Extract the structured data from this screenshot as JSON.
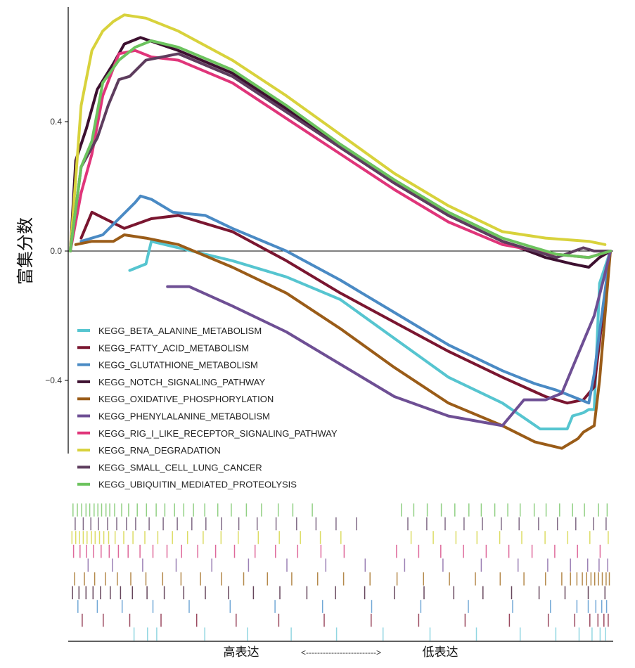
{
  "chart_data": {
    "type": "line",
    "title": "",
    "ylabel": "富集分数",
    "xlabel": {
      "left": "高表达",
      "arrow": "<------------------------->",
      "right": "低表达"
    },
    "ylim": [
      -0.64,
      0.74
    ],
    "yticks": [
      {
        "value": 0.4,
        "label": "0.4"
      },
      {
        "value": 0.0,
        "label": "0.0"
      },
      {
        "value": -0.4,
        "label": "−0.4"
      }
    ],
    "x_range": [
      0,
      100
    ],
    "zero_line": true,
    "grid": false,
    "legend_position": "bottom-left, inside plot",
    "series": [
      {
        "name": "KEGG_BETA_ALANINE_METABOLISM",
        "color": "#56c5d0",
        "points": [
          [
            11,
            -0.06
          ],
          [
            14,
            -0.04
          ],
          [
            15,
            0.03
          ],
          [
            20,
            0.01
          ],
          [
            30,
            -0.03
          ],
          [
            40,
            -0.08
          ],
          [
            50,
            -0.15
          ],
          [
            60,
            -0.27
          ],
          [
            70,
            -0.39
          ],
          [
            80,
            -0.47
          ],
          [
            87,
            -0.55
          ],
          [
            92,
            -0.55
          ],
          [
            93,
            -0.51
          ],
          [
            95,
            -0.5
          ],
          [
            96,
            -0.49
          ],
          [
            97,
            -0.49
          ],
          [
            98,
            -0.1
          ],
          [
            100,
            0.0
          ]
        ]
      },
      {
        "name": "KEGG_FATTY_ACID_METABOLISM",
        "color": "#7a1630",
        "points": [
          [
            2,
            0.04
          ],
          [
            4,
            0.12
          ],
          [
            10,
            0.07
          ],
          [
            15,
            0.1
          ],
          [
            20,
            0.11
          ],
          [
            30,
            0.06
          ],
          [
            40,
            -0.03
          ],
          [
            50,
            -0.13
          ],
          [
            60,
            -0.22
          ],
          [
            70,
            -0.31
          ],
          [
            80,
            -0.39
          ],
          [
            88,
            -0.45
          ],
          [
            92,
            -0.47
          ],
          [
            95,
            -0.46
          ],
          [
            97,
            -0.42
          ],
          [
            98,
            -0.28
          ],
          [
            100,
            0.0
          ]
        ]
      },
      {
        "name": "KEGG_GLUTATHIONE_METABOLISM",
        "color": "#4a8ac4",
        "points": [
          [
            2,
            0.03
          ],
          [
            6,
            0.05
          ],
          [
            9,
            0.1
          ],
          [
            12,
            0.15
          ],
          [
            13,
            0.17
          ],
          [
            15,
            0.16
          ],
          [
            19,
            0.12
          ],
          [
            25,
            0.11
          ],
          [
            30,
            0.07
          ],
          [
            40,
            0.0
          ],
          [
            50,
            -0.09
          ],
          [
            60,
            -0.19
          ],
          [
            70,
            -0.29
          ],
          [
            80,
            -0.37
          ],
          [
            86,
            -0.41
          ],
          [
            90,
            -0.43
          ],
          [
            93,
            -0.45
          ],
          [
            96,
            -0.47
          ],
          [
            97,
            -0.38
          ],
          [
            98,
            -0.25
          ],
          [
            100,
            0.0
          ]
        ]
      },
      {
        "name": "KEGG_NOTCH_SIGNALING_PATHWAY",
        "color": "#3d1030",
        "points": [
          [
            0,
            0.0
          ],
          [
            1,
            0.28
          ],
          [
            3,
            0.38
          ],
          [
            5,
            0.5
          ],
          [
            8,
            0.58
          ],
          [
            10,
            0.64
          ],
          [
            13,
            0.66
          ],
          [
            20,
            0.62
          ],
          [
            30,
            0.55
          ],
          [
            40,
            0.44
          ],
          [
            50,
            0.32
          ],
          [
            60,
            0.21
          ],
          [
            70,
            0.11
          ],
          [
            80,
            0.03
          ],
          [
            88,
            -0.02
          ],
          [
            93,
            -0.04
          ],
          [
            96,
            -0.05
          ],
          [
            98,
            -0.02
          ],
          [
            100,
            0.0
          ]
        ]
      },
      {
        "name": "KEGG_OXIDATIVE_PHOSPHORYLATION",
        "color": "#9a5c18",
        "points": [
          [
            1,
            0.02
          ],
          [
            4,
            0.03
          ],
          [
            8,
            0.03
          ],
          [
            10,
            0.05
          ],
          [
            14,
            0.04
          ],
          [
            20,
            0.02
          ],
          [
            30,
            -0.05
          ],
          [
            40,
            -0.13
          ],
          [
            50,
            -0.24
          ],
          [
            60,
            -0.36
          ],
          [
            70,
            -0.47
          ],
          [
            80,
            -0.54
          ],
          [
            86,
            -0.59
          ],
          [
            91,
            -0.61
          ],
          [
            94,
            -0.58
          ],
          [
            95,
            -0.56
          ],
          [
            97,
            -0.54
          ],
          [
            98,
            -0.4
          ],
          [
            100,
            0.0
          ]
        ]
      },
      {
        "name": "KEGG_PHENYLALANINE_METABOLISM",
        "color": "#6e4f94",
        "points": [
          [
            18,
            -0.11
          ],
          [
            22,
            -0.11
          ],
          [
            30,
            -0.17
          ],
          [
            40,
            -0.25
          ],
          [
            50,
            -0.35
          ],
          [
            60,
            -0.45
          ],
          [
            70,
            -0.51
          ],
          [
            80,
            -0.54
          ],
          [
            82,
            -0.5
          ],
          [
            84,
            -0.46
          ],
          [
            88,
            -0.46
          ],
          [
            91,
            -0.44
          ],
          [
            93,
            -0.36
          ],
          [
            95,
            -0.28
          ],
          [
            97,
            -0.2
          ],
          [
            99,
            -0.07
          ],
          [
            100,
            0.0
          ]
        ]
      },
      {
        "name": "KEGG_RIG_I_LIKE_RECEPTOR_SIGNALING_PATHWAY",
        "color": "#e0357a",
        "points": [
          [
            0,
            0.0
          ],
          [
            2,
            0.18
          ],
          [
            4,
            0.3
          ],
          [
            6,
            0.48
          ],
          [
            9,
            0.61
          ],
          [
            12,
            0.62
          ],
          [
            15,
            0.6
          ],
          [
            20,
            0.59
          ],
          [
            30,
            0.52
          ],
          [
            40,
            0.41
          ],
          [
            50,
            0.3
          ],
          [
            60,
            0.19
          ],
          [
            70,
            0.09
          ],
          [
            80,
            0.02
          ],
          [
            90,
            -0.01
          ],
          [
            96,
            -0.02
          ],
          [
            100,
            0.0
          ]
        ]
      },
      {
        "name": "KEGG_RNA_DEGRADATION",
        "color": "#d8d23c",
        "points": [
          [
            0,
            0.0
          ],
          [
            2,
            0.45
          ],
          [
            4,
            0.62
          ],
          [
            6,
            0.68
          ],
          [
            8,
            0.71
          ],
          [
            10,
            0.73
          ],
          [
            14,
            0.72
          ],
          [
            20,
            0.68
          ],
          [
            30,
            0.59
          ],
          [
            40,
            0.48
          ],
          [
            50,
            0.36
          ],
          [
            60,
            0.24
          ],
          [
            70,
            0.14
          ],
          [
            80,
            0.06
          ],
          [
            88,
            0.04
          ],
          [
            96,
            0.03
          ],
          [
            99,
            0.02
          ]
        ]
      },
      {
        "name": "KEGG_SMALL_CELL_LUNG_CANCER",
        "color": "#5e3d5e",
        "points": [
          [
            0,
            0.0
          ],
          [
            2,
            0.26
          ],
          [
            5,
            0.35
          ],
          [
            7,
            0.45
          ],
          [
            9,
            0.53
          ],
          [
            11,
            0.54
          ],
          [
            14,
            0.59
          ],
          [
            20,
            0.61
          ],
          [
            30,
            0.54
          ],
          [
            40,
            0.43
          ],
          [
            50,
            0.32
          ],
          [
            60,
            0.21
          ],
          [
            70,
            0.11
          ],
          [
            80,
            0.03
          ],
          [
            90,
            -0.02
          ],
          [
            95,
            0.01
          ],
          [
            97,
            0.0
          ],
          [
            100,
            0.0
          ]
        ]
      },
      {
        "name": "KEGG_UBIQUITIN_MEDIATED_PROTEOLYSIS",
        "color": "#6cc35e",
        "points": [
          [
            0,
            0.0
          ],
          [
            2,
            0.26
          ],
          [
            4,
            0.34
          ],
          [
            6,
            0.52
          ],
          [
            9,
            0.59
          ],
          [
            12,
            0.63
          ],
          [
            15,
            0.65
          ],
          [
            20,
            0.63
          ],
          [
            30,
            0.56
          ],
          [
            40,
            0.45
          ],
          [
            50,
            0.33
          ],
          [
            60,
            0.22
          ],
          [
            70,
            0.12
          ],
          [
            80,
            0.04
          ],
          [
            90,
            -0.01
          ],
          [
            96,
            -0.02
          ],
          [
            100,
            0.0
          ]
        ]
      }
    ],
    "hit_rugs": [
      {
        "series": "KEGG_UBIQUITIN_MEDIATED_PROTEOLYSIS",
        "color": "#7ec86e",
        "positions": [
          0.5,
          1.3,
          2.1,
          2.9,
          3.6,
          4.4,
          5.1,
          5.8,
          6.6,
          7.3,
          8.2,
          9.5,
          10.8,
          12.4,
          14.1,
          15.9,
          17.5,
          19.3,
          21.0,
          22.8,
          24.9,
          27.3,
          29.8,
          32.6,
          35.4,
          38.5,
          41.2,
          44.8,
          61.3,
          63.6,
          66.1,
          68.7,
          71.2,
          73.8,
          76.1,
          78.6,
          81.0,
          83.3,
          85.9,
          88.1,
          90.6,
          93.0,
          95.2,
          97.8,
          99.4
        ]
      },
      {
        "series": "KEGG_SMALL_CELL_LUNG_CANCER",
        "color": "#6a5070",
        "positions": [
          0.9,
          2.4,
          3.8,
          5.2,
          6.9,
          8.6,
          10.4,
          12.1,
          14.6,
          17.2,
          19.8,
          22.5,
          25.1,
          28.0,
          31.2,
          34.6,
          38.1,
          41.9,
          45.5,
          49.2,
          53.0,
          62.5,
          66.0,
          69.4,
          72.9,
          76.3,
          79.8,
          83.1,
          86.7,
          90.2,
          93.6,
          96.9,
          99.2
        ]
      },
      {
        "series": "KEGG_RNA_DEGRADATION",
        "color": "#d6d64a",
        "positions": [
          0.3,
          1.0,
          1.7,
          2.4,
          3.1,
          3.9,
          4.6,
          5.4,
          6.2,
          7.1,
          8.3,
          9.9,
          11.6,
          13.8,
          16.2,
          18.9,
          21.7,
          24.6,
          27.9,
          31.1,
          34.8,
          38.7,
          42.6,
          46.3,
          50.1,
          63.1,
          67.2,
          71.4,
          75.3,
          79.5,
          83.6,
          87.9,
          92.1,
          96.2,
          99.6
        ]
      },
      {
        "series": "KEGG_RIG_I_LIKE_RECEPTOR_SIGNALING_PATHWAY",
        "color": "#d9508a",
        "positions": [
          0.6,
          1.8,
          3.0,
          4.3,
          5.7,
          7.2,
          8.9,
          10.7,
          12.9,
          15.3,
          17.9,
          20.6,
          23.6,
          26.9,
          30.4,
          34.2,
          38.0,
          42.1,
          46.4,
          50.7,
          60.4,
          64.5,
          68.6,
          72.8,
          77.0,
          81.2,
          85.5,
          89.7,
          93.9,
          98.1
        ]
      },
      {
        "series": "KEGG_PHENYLALANINE_METABOLISM",
        "color": "#8a6aa8",
        "positions": [
          3.3,
          7.8,
          13.4,
          19.6,
          26.2,
          33.0,
          40.1,
          47.3,
          54.6,
          61.9,
          69.0,
          76.1,
          82.9,
          88.4,
          92.6,
          95.8,
          97.9,
          99.5
        ]
      },
      {
        "series": "KEGG_OXIDATIVE_PHOSPHORYLATION",
        "color": "#a8752c",
        "positions": [
          0.8,
          2.6,
          4.5,
          6.5,
          8.7,
          11.2,
          14.0,
          17.1,
          20.5,
          24.1,
          28.0,
          32.1,
          36.5,
          41.0,
          45.8,
          50.6,
          55.5,
          60.5,
          65.4,
          70.2,
          75.0,
          79.6,
          84.0,
          88.0,
          91.0,
          92.6,
          93.8,
          94.8,
          95.6,
          96.4,
          97.1,
          97.8,
          98.5,
          99.2,
          99.8
        ]
      },
      {
        "series": "KEGG_NOTCH_SIGNALING_PATHWAY",
        "color": "#4c2640",
        "positions": [
          0.4,
          1.6,
          2.9,
          4.2,
          5.6,
          7.4,
          9.3,
          11.5,
          14.2,
          17.4,
          21.0,
          25.0,
          29.3,
          33.9,
          38.8,
          43.8,
          49.1,
          54.5,
          60.0,
          65.5,
          71.0,
          76.4,
          81.7,
          86.8,
          91.6,
          95.9,
          99.0
        ]
      },
      {
        "series": "KEGG_GLUTATHIONE_METABOLISM",
        "color": "#5a9ad0",
        "positions": [
          1.4,
          5.0,
          9.6,
          15.3,
          22.0,
          29.6,
          37.9,
          46.7,
          55.8,
          64.9,
          73.7,
          81.9,
          88.9,
          93.8,
          95.9,
          97.3,
          98.4,
          99.3
        ]
      },
      {
        "series": "KEGG_FATTY_ACID_METABOLISM",
        "color": "#8a2a44",
        "positions": [
          2.2,
          6.1,
          11.0,
          16.8,
          23.4,
          30.7,
          38.6,
          47.0,
          55.7,
          64.5,
          73.1,
          81.3,
          88.5,
          93.4,
          96.2,
          97.7,
          98.8,
          99.6
        ]
      },
      {
        "series": "KEGG_BETA_ALANINE_METABOLISM",
        "color": "#7ecfdc",
        "positions": [
          11.8,
          14.3,
          16.0,
          24.9,
          32.8,
          40.9,
          49.3,
          57.9,
          66.6,
          75.2,
          83.3,
          89.9,
          94.2,
          96.6,
          98.1,
          99.1
        ]
      }
    ]
  }
}
